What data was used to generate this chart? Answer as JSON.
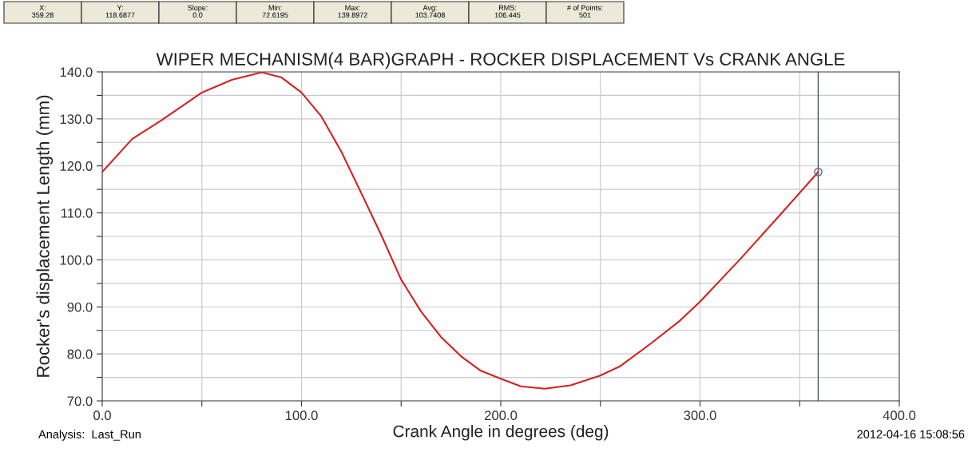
{
  "chart_data": {
    "type": "line",
    "title": "WIPER MECHANISM(4 BAR)GRAPH - ROCKER DISPLACEMENT Vs CRANK ANGLE",
    "xlabel": "Crank Angle in degrees (deg)",
    "ylabel": "Rocker's displacement Length (mm)",
    "annotations": [
      "X:\n359.28",
      "Y:\n118.6877",
      "Slope:\n0.0",
      "Min:\n72.6195",
      "Max:\n139.8972",
      "Avg:\n103.7408",
      "RMS:\n106.445",
      "# of Points:\n501",
      "Analysis:  Last_Run",
      "2012-04-16 15:08:56"
    ],
    "series": [
      {
        "color": "#d42020",
        "x": [
          0,
          15,
          30,
          50,
          65,
          80,
          90,
          100,
          110,
          120,
          130,
          140,
          150,
          160,
          170,
          180,
          190,
          200,
          210,
          222,
          235,
          250,
          260,
          275,
          290,
          300,
          320,
          340,
          359.28
        ],
        "values": [
          118.7,
          125.7,
          129.8,
          135.6,
          138.3,
          139.9,
          138.8,
          135.6,
          130.5,
          123,
          114.2,
          105.3,
          95.8,
          89,
          83.6,
          79.5,
          76.4,
          74.7,
          73.1,
          72.6,
          73.3,
          75.4,
          77.4,
          82.1,
          87.1,
          91.1,
          100.1,
          109.5,
          118.7
        ]
      },
      {
        "type": "scatter",
        "color": "#5a6a8a",
        "marker": "circle",
        "x": [
          359.3
        ],
        "values": [
          118.7
        ]
      }
    ],
    "ref_lines": [
      {
        "axis": "x",
        "value": 359.28,
        "color": "#4a5568"
      }
    ],
    "xlim": [
      0,
      400
    ],
    "ylim": [
      70,
      140
    ],
    "xticks": [
      {
        "value": 0,
        "label": "0.0"
      },
      {
        "value": 50,
        "label": null
      },
      {
        "value": 100,
        "label": "100.0"
      },
      {
        "value": 150,
        "label": null
      },
      {
        "value": 200,
        "label": "200.0"
      },
      {
        "value": 250,
        "label": null
      },
      {
        "value": 300,
        "label": "300.0"
      },
      {
        "value": 350,
        "label": null
      },
      {
        "value": 400,
        "label": "400.0"
      }
    ],
    "yticks": [
      {
        "value": 70,
        "label": "70.0"
      },
      {
        "value": 75,
        "label": null
      },
      {
        "value": 80,
        "label": "80.0"
      },
      {
        "value": 85,
        "label": null
      },
      {
        "value": 90,
        "label": "90.0"
      },
      {
        "value": 95,
        "label": null
      },
      {
        "value": 100,
        "label": "100.0"
      },
      {
        "value": 105,
        "label": null
      },
      {
        "value": 110,
        "label": "110.0"
      },
      {
        "value": 115,
        "label": null
      },
      {
        "value": 120,
        "label": "120.0"
      },
      {
        "value": 125,
        "label": null
      },
      {
        "value": 130,
        "label": "130.0"
      },
      {
        "value": 135,
        "label": null
      },
      {
        "value": 140,
        "label": "140.0"
      }
    ],
    "grid": true,
    "legend": false
  }
}
